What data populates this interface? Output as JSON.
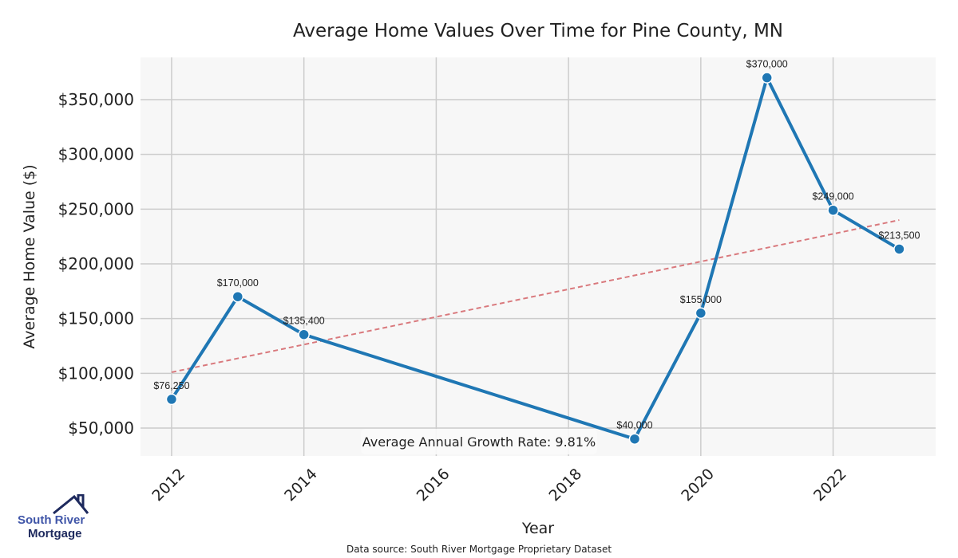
{
  "chart_data": {
    "type": "line",
    "title": "Average Home Values Over Time for Pine County, MN",
    "xlabel": "Year",
    "ylabel": "Average Home Value ($)",
    "x": [
      2012,
      2013,
      2014,
      2019,
      2020,
      2021,
      2022,
      2023
    ],
    "values": [
      76250,
      170000,
      135400,
      40000,
      155000,
      370000,
      249000,
      213500
    ],
    "data_labels": [
      "$76,250",
      "$170,000",
      "$135,400",
      "$40,000",
      "$155,000",
      "$370,000",
      "$249,000",
      "$213,500"
    ],
    "xticks": [
      2012,
      2014,
      2016,
      2018,
      2020,
      2022
    ],
    "xtick_labels": [
      "2012",
      "2014",
      "2016",
      "2018",
      "2020",
      "2022"
    ],
    "yticks": [
      50000,
      100000,
      150000,
      200000,
      250000,
      300000,
      350000
    ],
    "ytick_labels": [
      "$50,000",
      "$100,000",
      "$150,000",
      "$200,000",
      "$250,000",
      "$300,000",
      "$350,000"
    ],
    "xlim": [
      2011.53,
      2023.55
    ],
    "ylim": [
      24500,
      388600
    ],
    "grid": true,
    "trendline": {
      "x": [
        2012,
        2023
      ],
      "y": [
        101000,
        240000
      ],
      "color": "#d9797d",
      "style": "dashed"
    },
    "series_color": "#1f77b4",
    "annotation": "Average Annual Growth Rate: 9.81%",
    "source_note": "Data source: South River Mortgage Proprietary Dataset"
  },
  "logo": {
    "line1": "South River",
    "line2": "Mortgage"
  }
}
